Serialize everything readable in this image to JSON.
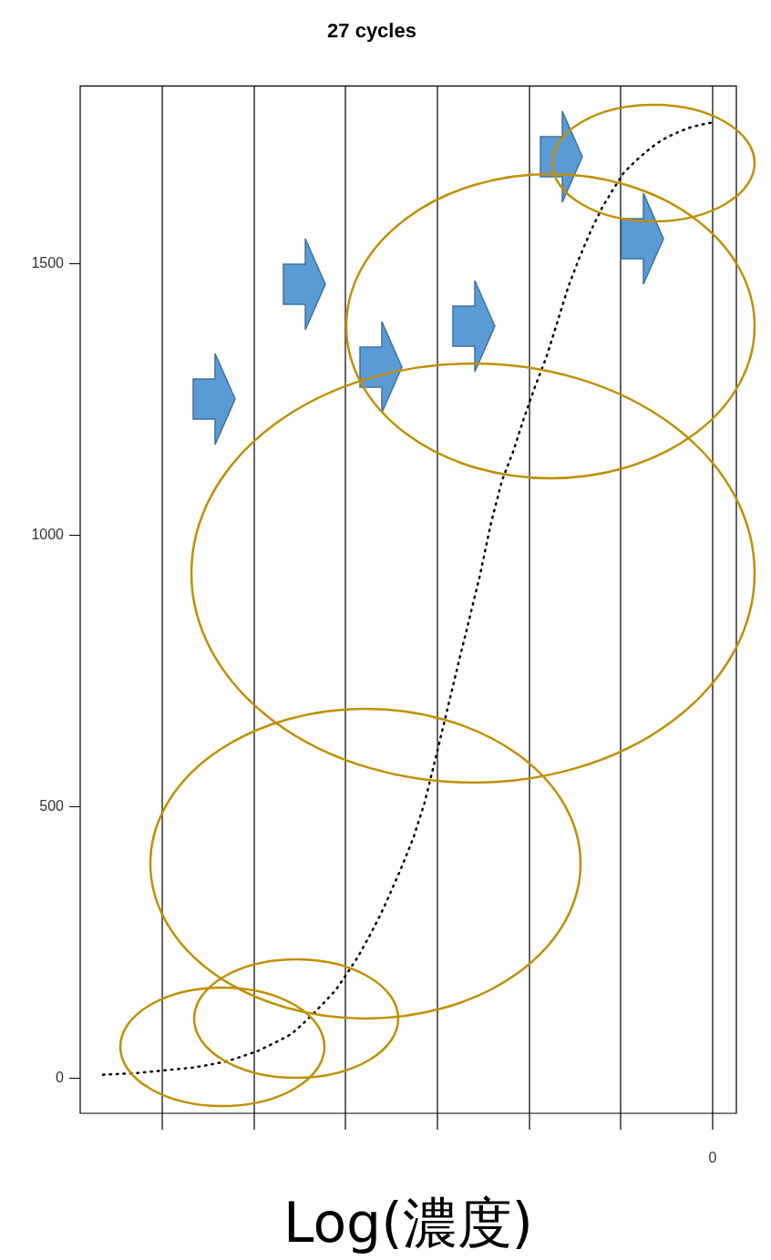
{
  "chart_data": {
    "type": "line",
    "title": "27 cycles",
    "xlabel": "Log(濃度)",
    "categories": [
      null,
      null,
      null,
      null,
      null,
      null,
      null,
      null,
      null,
      null,
      null,
      null,
      null,
      null,
      null,
      null,
      null,
      null,
      null,
      null,
      null,
      null,
      null,
      null,
      null,
      null,
      null,
      null,
      null,
      null,
      null,
      null,
      null,
      null,
      null,
      null,
      null,
      null,
      null,
      null,
      null,
      null,
      null,
      null,
      null,
      null,
      null,
      null,
      null,
      null,
      null,
      null,
      null,
      null,
      null,
      null
    ],
    "values": [
      7,
      8,
      9,
      10,
      12,
      14,
      16,
      18,
      20,
      23,
      27,
      31,
      37,
      44,
      51,
      61,
      71,
      82,
      100,
      120,
      141,
      163,
      193,
      224,
      261,
      300,
      345,
      392,
      443,
      507,
      589,
      674,
      759,
      842,
      926,
      1022,
      1101,
      1154,
      1217,
      1275,
      1328,
      1393,
      1459,
      1512,
      1560,
      1602,
      1636,
      1668,
      1688,
      1706,
      1722,
      1734,
      1743,
      1751,
      1756,
      1760
    ],
    "color": "#000000",
    "marker": "none",
    "line_style": "dotted",
    "ylim": [
      -64,
      1827
    ],
    "yticks": [
      0,
      500,
      1000,
      1500
    ],
    "legend": false,
    "grid": "x",
    "annotations": [
      "0"
    ]
  }
}
